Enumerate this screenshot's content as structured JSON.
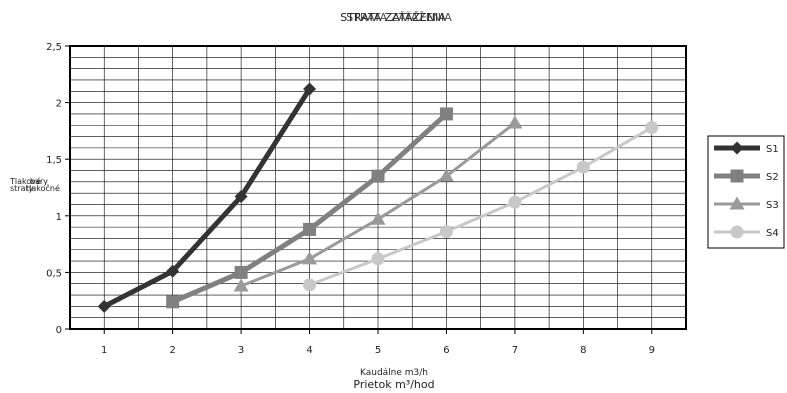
{
  "chart_data": {
    "type": "line",
    "title_overlay_1": "STRATA ZAŤAŽENIA",
    "title_overlay_2": "STRATA ZAŤAŽENIA",
    "xlabel_1": "Kaudálne m3/h",
    "xlabel_2": "Prietok m³/hod",
    "ylabel_1": "Tlakové",
    "ylabel_2": "bary",
    "ylabel_3": "straty",
    "ylabel_4": "tlakočné",
    "xlim": [
      0.5,
      9.5
    ],
    "ylim": [
      0,
      2.5
    ],
    "x_ticks": [
      1,
      2,
      3,
      4,
      5,
      6,
      7,
      8,
      9
    ],
    "y_ticks": [
      0,
      0.5,
      1,
      1.5,
      2,
      2.5
    ],
    "y_tick_labels": [
      "0",
      "0,5",
      "1",
      "1,5",
      "2",
      "2,5"
    ],
    "grid": true,
    "legend_position": "right",
    "series": [
      {
        "name": "S1",
        "color": "#333333",
        "marker": "diamond",
        "width": 5,
        "x": [
          1,
          2,
          3,
          4
        ],
        "y": [
          0.2,
          0.51,
          1.17,
          2.12
        ]
      },
      {
        "name": "S2",
        "color": "#808080",
        "marker": "square",
        "width": 5,
        "x": [
          2,
          3,
          4,
          5,
          6
        ],
        "y": [
          0.24,
          0.5,
          0.88,
          1.35,
          1.9
        ]
      },
      {
        "name": "S3",
        "color": "#9a9a9a",
        "marker": "triangle",
        "width": 3,
        "x": [
          3,
          4,
          5,
          6,
          7
        ],
        "y": [
          0.38,
          0.62,
          0.97,
          1.35,
          1.82
        ]
      },
      {
        "name": "S4",
        "color": "#c8c8c8",
        "marker": "circle",
        "width": 3,
        "x": [
          4,
          5,
          6,
          7,
          8,
          9
        ],
        "y": [
          0.39,
          0.62,
          0.86,
          1.12,
          1.43,
          1.78
        ]
      }
    ]
  }
}
